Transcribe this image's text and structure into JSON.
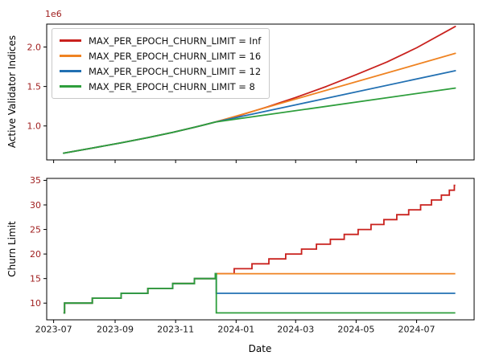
{
  "figure": {
    "offset_label": "1e6",
    "tick_label_color": "#a02020",
    "x_tick_label_color": "#1a1a1a",
    "spine_color": "#000000",
    "background": "#ffffff",
    "legend_border_color": "#c8c8c8"
  },
  "chart_data": [
    {
      "type": "line",
      "ylabel": "Active Validator Indices",
      "y_offset_label": "1e6",
      "x_range": [
        "2023-06-24",
        "2024-08-28"
      ],
      "y_range": [
        0.57,
        2.29
      ],
      "y_ticks": [
        "1.0",
        "1.5",
        "2.0"
      ],
      "x_ticks": [
        "2023-07",
        "2023-09",
        "2023-11",
        "2024-01",
        "2024-03",
        "2024-05",
        "2024-07"
      ],
      "x_tick_labels_visible": false,
      "legend_position": "upper-left",
      "grid": false,
      "series": [
        {
          "label": "MAX_PER_EPOCH_CHURN_LIMIT = Inf",
          "color": "#c9221e",
          "points": [
            [
              "2023-07-11",
              0.655
            ],
            [
              "2023-08-09",
              0.721
            ],
            [
              "2023-09-07",
              0.786
            ],
            [
              "2023-10-04",
              0.852
            ],
            [
              "2023-10-29",
              0.918
            ],
            [
              "2023-11-20",
              0.983
            ],
            [
              "2023-12-11",
              1.049
            ],
            [
              "2024-01-01",
              1.12
            ],
            [
              "2024-02-01",
              1.24
            ],
            [
              "2024-03-01",
              1.36
            ],
            [
              "2024-04-01",
              1.5
            ],
            [
              "2024-05-01",
              1.65
            ],
            [
              "2024-06-01",
              1.81
            ],
            [
              "2024-07-01",
              1.99
            ],
            [
              "2024-08-09",
              2.26
            ]
          ]
        },
        {
          "label": "MAX_PER_EPOCH_CHURN_LIMIT = 16",
          "color": "#ef8322",
          "points": [
            [
              "2023-07-11",
              0.655
            ],
            [
              "2023-08-09",
              0.721
            ],
            [
              "2023-09-07",
              0.786
            ],
            [
              "2023-10-04",
              0.852
            ],
            [
              "2023-10-29",
              0.918
            ],
            [
              "2023-11-20",
              0.983
            ],
            [
              "2023-12-11",
              1.049
            ],
            [
              "2024-08-09",
              1.92
            ]
          ]
        },
        {
          "label": "MAX_PER_EPOCH_CHURN_LIMIT = 12",
          "color": "#2270b2",
          "points": [
            [
              "2023-07-11",
              0.655
            ],
            [
              "2023-08-09",
              0.721
            ],
            [
              "2023-09-07",
              0.786
            ],
            [
              "2023-10-04",
              0.852
            ],
            [
              "2023-10-29",
              0.918
            ],
            [
              "2023-11-20",
              0.983
            ],
            [
              "2023-12-11",
              1.049
            ],
            [
              "2024-08-09",
              1.7
            ]
          ]
        },
        {
          "label": "MAX_PER_EPOCH_CHURN_LIMIT = 8",
          "color": "#2e9e3c",
          "points": [
            [
              "2023-07-11",
              0.655
            ],
            [
              "2023-08-09",
              0.721
            ],
            [
              "2023-09-07",
              0.786
            ],
            [
              "2023-10-04",
              0.852
            ],
            [
              "2023-10-29",
              0.918
            ],
            [
              "2023-11-20",
              0.983
            ],
            [
              "2023-12-11",
              1.049
            ],
            [
              "2024-08-09",
              1.48
            ]
          ]
        }
      ]
    },
    {
      "type": "step",
      "ylabel": "Churn Limit",
      "xlabel": "Date",
      "x_range": [
        "2023-06-24",
        "2024-08-28"
      ],
      "y_range": [
        6.6,
        35.4
      ],
      "y_ticks": [
        "10",
        "15",
        "20",
        "25",
        "30",
        "35"
      ],
      "x_ticks": [
        "2023-07",
        "2023-09",
        "2023-11",
        "2024-01",
        "2024-03",
        "2024-05",
        "2024-07"
      ],
      "x_tick_labels_visible": true,
      "end_date": "2024-08-09",
      "grid": false,
      "series": [
        {
          "label": "MAX_PER_EPOCH_CHURN_LIMIT = Inf",
          "color": "#c9221e",
          "steps": [
            [
              "2023-07-11",
              8
            ],
            [
              "2023-07-12",
              10
            ],
            [
              "2023-08-09",
              11
            ],
            [
              "2023-09-07",
              12
            ],
            [
              "2023-10-04",
              13
            ],
            [
              "2023-10-29",
              14
            ],
            [
              "2023-11-20",
              15
            ],
            [
              "2023-12-11",
              16
            ],
            [
              "2023-12-30",
              17
            ],
            [
              "2024-01-17",
              18
            ],
            [
              "2024-02-03",
              19
            ],
            [
              "2024-02-20",
              20
            ],
            [
              "2024-03-07",
              21
            ],
            [
              "2024-03-22",
              22
            ],
            [
              "2024-04-05",
              23
            ],
            [
              "2024-04-19",
              24
            ],
            [
              "2024-05-03",
              25
            ],
            [
              "2024-05-16",
              26
            ],
            [
              "2024-05-29",
              27
            ],
            [
              "2024-06-11",
              28
            ],
            [
              "2024-06-23",
              29
            ],
            [
              "2024-07-05",
              30
            ],
            [
              "2024-07-16",
              31
            ],
            [
              "2024-07-26",
              32
            ],
            [
              "2024-08-03",
              33
            ],
            [
              "2024-08-08",
              34
            ]
          ]
        },
        {
          "label": "MAX_PER_EPOCH_CHURN_LIMIT = 16",
          "color": "#ef8322",
          "steps": [
            [
              "2023-07-11",
              8
            ],
            [
              "2023-07-12",
              10
            ],
            [
              "2023-08-09",
              11
            ],
            [
              "2023-09-07",
              12
            ],
            [
              "2023-10-04",
              13
            ],
            [
              "2023-10-29",
              14
            ],
            [
              "2023-11-20",
              15
            ],
            [
              "2023-12-11",
              16
            ]
          ]
        },
        {
          "label": "MAX_PER_EPOCH_CHURN_LIMIT = 12",
          "color": "#2270b2",
          "steps": [
            [
              "2023-07-11",
              8
            ],
            [
              "2023-07-12",
              10
            ],
            [
              "2023-08-09",
              11
            ],
            [
              "2023-09-07",
              12
            ],
            [
              "2023-10-04",
              13
            ],
            [
              "2023-10-29",
              14
            ],
            [
              "2023-11-20",
              15
            ],
            [
              "2023-12-11",
              16
            ],
            [
              "2023-12-12",
              12
            ]
          ]
        },
        {
          "label": "MAX_PER_EPOCH_CHURN_LIMIT = 8",
          "color": "#2e9e3c",
          "steps": [
            [
              "2023-07-11",
              8
            ],
            [
              "2023-07-12",
              10
            ],
            [
              "2023-08-09",
              11
            ],
            [
              "2023-09-07",
              12
            ],
            [
              "2023-10-04",
              13
            ],
            [
              "2023-10-29",
              14
            ],
            [
              "2023-11-20",
              15
            ],
            [
              "2023-12-11",
              16
            ],
            [
              "2023-12-12",
              8
            ]
          ]
        }
      ]
    }
  ]
}
